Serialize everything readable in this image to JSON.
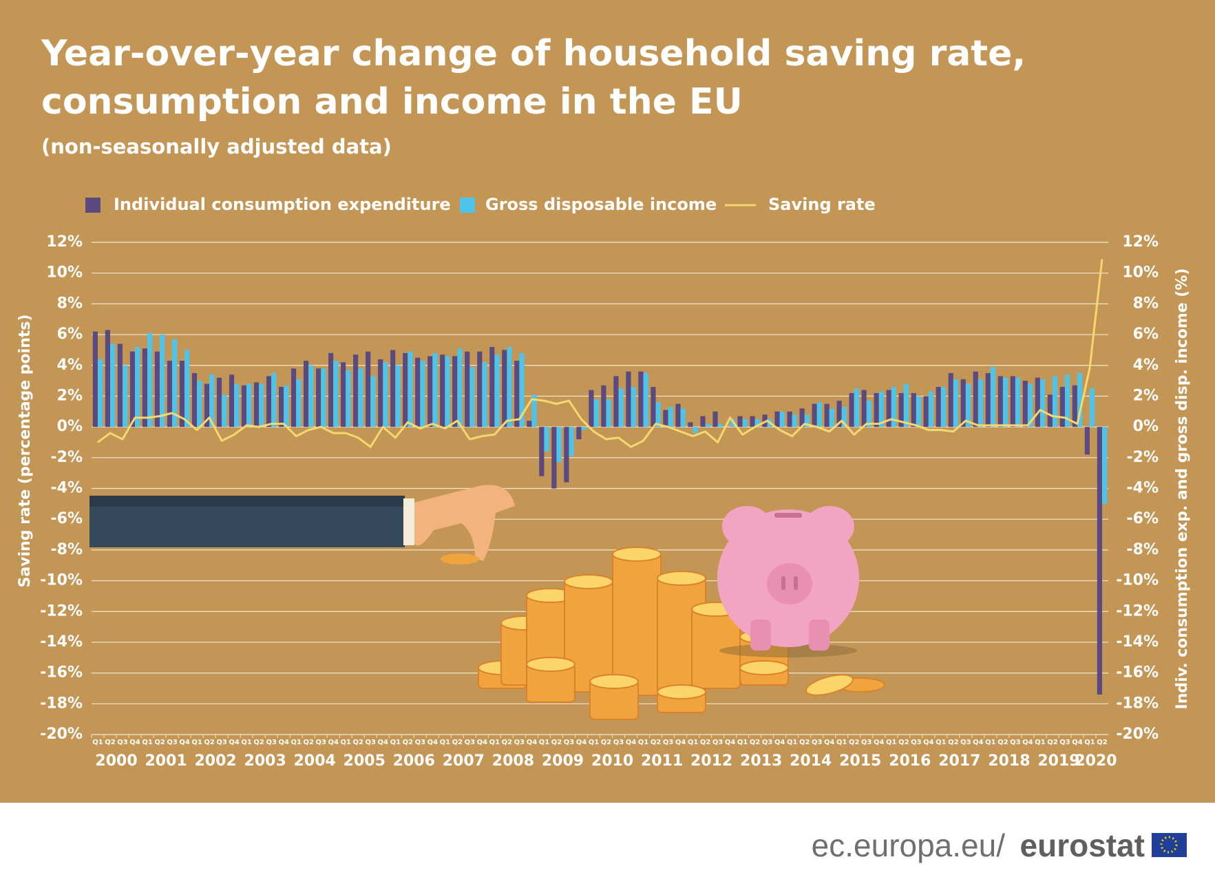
{
  "chart_data": {
    "type": "bar_line",
    "title": [
      "Year-over-year change of household saving rate,",
      "consumption and income in the EU"
    ],
    "subtitle": "(non-seasonally adjusted data)",
    "y_label": "Saving rate (percentage points)",
    "y2_label": "Indiv. consumption exp. and  gross disp. income (%)",
    "categories": [
      "Q1",
      "Q2",
      "Q3",
      "Q4",
      "Q1",
      "Q2",
      "Q3",
      "Q4",
      "Q1",
      "Q2",
      "Q3",
      "Q4",
      "Q1",
      "Q2",
      "Q3",
      "Q4",
      "Q1",
      "Q2",
      "Q3",
      "Q4",
      "Q1",
      "Q2",
      "Q3",
      "Q4",
      "Q1",
      "Q2",
      "Q3",
      "Q4",
      "Q1",
      "Q2",
      "Q3",
      "Q4",
      "Q1",
      "Q2",
      "Q3",
      "Q4",
      "Q1",
      "Q2",
      "Q3",
      "Q4",
      "Q1",
      "Q2",
      "Q3",
      "Q4",
      "Q1",
      "Q2",
      "Q3",
      "Q4",
      "Q1",
      "Q2",
      "Q3",
      "Q4",
      "Q1",
      "Q2",
      "Q3",
      "Q4",
      "Q1",
      "Q2",
      "Q3",
      "Q4",
      "Q1",
      "Q2",
      "Q3",
      "Q4",
      "Q1",
      "Q2",
      "Q3",
      "Q4",
      "Q1",
      "Q2",
      "Q3",
      "Q4",
      "Q1",
      "Q2",
      "Q3",
      "Q4",
      "Q1",
      "Q2",
      "Q3",
      "Q4",
      "Q1",
      "Q2"
    ],
    "years": [
      "2000",
      "2001",
      "2002",
      "2003",
      "2004",
      "2005",
      "2006",
      "2007",
      "2008",
      "2009",
      "2010",
      "2011",
      "2012",
      "2013",
      "2014",
      "2015",
      "2016",
      "2017",
      "2018",
      "2019",
      "2020"
    ],
    "series": [
      {
        "name": "Individual consumption expenditure",
        "color": "#5a4a80",
        "kind": "bar",
        "axis": "y2",
        "values": [
          6.2,
          6.3,
          5.4,
          4.9,
          5.1,
          4.9,
          4.3,
          4.3,
          3.5,
          2.8,
          3.2,
          3.4,
          2.7,
          2.9,
          3.3,
          2.6,
          3.8,
          4.3,
          3.8,
          4.8,
          4.2,
          4.7,
          4.9,
          4.4,
          5.0,
          4.8,
          4.5,
          4.6,
          4.7,
          4.6,
          4.9,
          4.9,
          5.2,
          5.0,
          4.3,
          0.4,
          -3.2,
          -4.0,
          -3.6,
          -0.8,
          2.4,
          2.7,
          3.3,
          3.6,
          3.6,
          2.6,
          1.1,
          1.5,
          0.3,
          0.7,
          1.0,
          0.0,
          0.7,
          0.7,
          0.8,
          1.0,
          1.0,
          1.2,
          1.5,
          1.5,
          1.7,
          2.2,
          2.4,
          2.2,
          2.4,
          2.2,
          2.2,
          2.0,
          2.6,
          3.5,
          3.1,
          3.6,
          3.5,
          3.3,
          3.3,
          3.0,
          3.2,
          2.1,
          2.6,
          2.7,
          -1.8,
          -17.4
        ]
      },
      {
        "name": "Gross disposable income",
        "color": "#4fc4ea",
        "kind": "bar",
        "axis": "y2",
        "values": [
          4.4,
          5.4,
          4.0,
          5.2,
          6.1,
          6.0,
          5.7,
          5.0,
          3.0,
          3.4,
          2.1,
          2.8,
          2.8,
          2.8,
          3.5,
          2.7,
          3.1,
          4.0,
          3.8,
          4.3,
          3.7,
          3.8,
          3.3,
          4.2,
          4.0,
          4.9,
          4.3,
          4.8,
          4.6,
          5.1,
          3.9,
          4.2,
          4.7,
          5.2,
          4.8,
          2.1,
          -1.6,
          -2.3,
          -1.9,
          -0.2,
          1.8,
          1.8,
          2.5,
          2.6,
          3.5,
          1.6,
          1.3,
          1.2,
          -0.4,
          0.2,
          0.2,
          0.5,
          0.5,
          0.5,
          0.5,
          1.0,
          0.8,
          0.8,
          1.6,
          1.2,
          1.3,
          2.5,
          1.7,
          2.3,
          2.6,
          2.8,
          2.0,
          2.3,
          2.6,
          3.1,
          2.8,
          3.1,
          3.9,
          3.2,
          3.2,
          2.8,
          3.1,
          3.3,
          3.4,
          3.5,
          2.5,
          -5.0
        ]
      },
      {
        "name": "Saving rate",
        "color": "#f6d86e",
        "kind": "line",
        "axis": "y",
        "values": [
          -1.0,
          -0.4,
          -0.8,
          0.6,
          0.6,
          0.7,
          0.9,
          0.5,
          -0.2,
          0.6,
          -0.9,
          -0.5,
          0.1,
          0.0,
          0.2,
          0.2,
          -0.6,
          -0.2,
          0.0,
          -0.4,
          -0.4,
          -0.7,
          -1.3,
          0.0,
          -0.7,
          0.3,
          -0.1,
          0.2,
          -0.1,
          0.4,
          -0.8,
          -0.6,
          -0.5,
          0.4,
          0.5,
          1.8,
          1.7,
          1.5,
          1.7,
          0.5,
          -0.3,
          -0.8,
          -0.7,
          -1.3,
          -0.9,
          0.2,
          0.0,
          -0.3,
          -0.6,
          -0.3,
          -1.0,
          0.6,
          -0.5,
          0.0,
          0.4,
          -0.2,
          -0.6,
          0.2,
          0.0,
          -0.3,
          0.4,
          -0.5,
          0.2,
          0.2,
          0.5,
          0.3,
          0.1,
          -0.2,
          -0.2,
          -0.3,
          0.4,
          0.1,
          0.1,
          0.1,
          0.1,
          0.1,
          1.1,
          0.7,
          0.6,
          0.2,
          3.8,
          10.9
        ]
      }
    ],
    "ylim": [
      -20,
      12
    ],
    "yticks": [
      {
        "value": 12,
        "label": "12%"
      },
      {
        "value": 10,
        "label": "10%"
      },
      {
        "value": 8,
        "label": "8%"
      },
      {
        "value": 6,
        "label": "6%"
      },
      {
        "value": 4,
        "label": "4%"
      },
      {
        "value": 2,
        "label": "2%"
      },
      {
        "value": 0,
        "label": "0%"
      },
      {
        "value": -2,
        "label": "-2%"
      },
      {
        "value": -4,
        "label": "-4%"
      },
      {
        "value": -6,
        "label": "-6%"
      },
      {
        "value": -8,
        "label": "-8%"
      },
      {
        "value": -10,
        "label": "-10%"
      },
      {
        "value": -12,
        "label": "-12%"
      },
      {
        "value": -14,
        "label": "-14%"
      },
      {
        "value": -16,
        "label": "-16%"
      },
      {
        "value": -18,
        "label": "-18%"
      },
      {
        "value": -20,
        "label": "-20%"
      }
    ],
    "y2lim": [
      -20,
      12
    ],
    "y2ticks": [
      {
        "value": 12,
        "label": "12%"
      },
      {
        "value": 10,
        "label": "10%"
      },
      {
        "value": 8,
        "label": "8%"
      },
      {
        "value": 6,
        "label": "6%"
      },
      {
        "value": 4,
        "label": "4%"
      },
      {
        "value": 2,
        "label": "2%"
      },
      {
        "value": 0,
        "label": "0%"
      },
      {
        "value": -2,
        "label": "-2%"
      },
      {
        "value": -4,
        "label": "-4%"
      },
      {
        "value": -6,
        "label": "-6%"
      },
      {
        "value": -8,
        "label": "-8%"
      },
      {
        "value": -10,
        "label": "-10%"
      },
      {
        "value": -12,
        "label": "-12%"
      },
      {
        "value": -14,
        "label": "-14%"
      },
      {
        "value": -16,
        "label": "-16%"
      },
      {
        "value": -18,
        "label": "-18%"
      },
      {
        "value": -20,
        "label": "-20%"
      }
    ],
    "grid": true,
    "legend": "top"
  },
  "footer": {
    "site": "ec.europa.eu/",
    "brand": "eurostat"
  }
}
